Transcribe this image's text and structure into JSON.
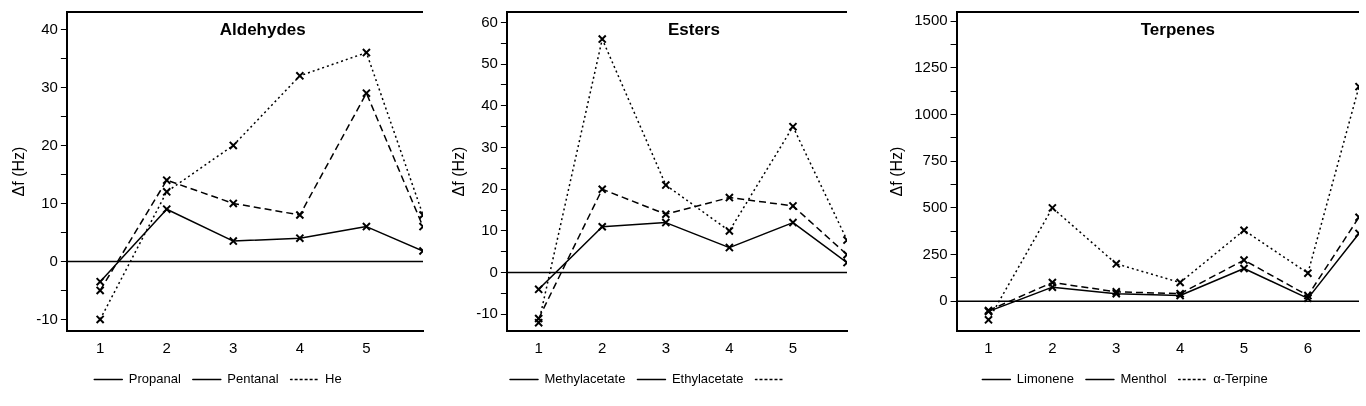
{
  "chart_data": [
    {
      "type": "line",
      "title": "Aldehydes",
      "ylabel": "Δf (Hz)",
      "x": [
        1,
        2,
        3,
        4,
        5,
        5.85
      ],
      "xlim": [
        0.5,
        5.85
      ],
      "xticks": [
        1,
        2,
        3,
        4,
        5
      ],
      "ylim": [
        -12,
        43
      ],
      "yticks": [
        {
          "value": -10,
          "label": "-10"
        },
        {
          "value": -5,
          "label": null
        },
        0,
        {
          "value": 5,
          "label": null
        },
        10,
        {
          "value": 15,
          "label": null
        },
        20,
        {
          "value": 25,
          "label": null
        },
        30,
        {
          "value": 35,
          "label": null
        },
        40
      ],
      "grid": false,
      "legend": "bottom",
      "ref_lines": [
        {
          "axis": "y",
          "value": 0,
          "color": "#000000"
        }
      ],
      "series": [
        {
          "name": "Propanal",
          "color": "#000000",
          "line_style": "solid",
          "marker": "cross",
          "values": [
            -3.5,
            9,
            3.5,
            4,
            6,
            1.8
          ]
        },
        {
          "name": "Pentanal",
          "color": "#000000",
          "line_style": "dashed",
          "marker": "cross",
          "values": [
            -5,
            14,
            10,
            8,
            29,
            6
          ]
        },
        {
          "name": "He",
          "color": "#000000",
          "line_style": "dotted",
          "marker": "cross",
          "values": [
            -10,
            12,
            20,
            32,
            36,
            8
          ]
        }
      ]
    },
    {
      "type": "line",
      "title": "Esters",
      "ylabel": "Δf (Hz)",
      "x": [
        1,
        2,
        3,
        4,
        5,
        5.85
      ],
      "xlim": [
        0.5,
        5.85
      ],
      "xticks": [
        1,
        2,
        3,
        4,
        5
      ],
      "ylim": [
        -14,
        62.5
      ],
      "yticks": [
        {
          "value": -10,
          "label": "-10"
        },
        {
          "value": -5,
          "label": null
        },
        0,
        {
          "value": 5,
          "label": null
        },
        10,
        {
          "value": 15,
          "label": null
        },
        20,
        {
          "value": 25,
          "label": null
        },
        30,
        {
          "value": 35,
          "label": null
        },
        40,
        {
          "value": 45,
          "label": null
        },
        50,
        {
          "value": 55,
          "label": null
        },
        60
      ],
      "grid": false,
      "legend": "bottom",
      "ref_lines": [
        {
          "axis": "y",
          "value": 0,
          "color": "#000000"
        }
      ],
      "series": [
        {
          "name": "Methylacetate",
          "color": "#000000",
          "line_style": "solid",
          "marker": "cross",
          "values": [
            -4,
            11,
            12,
            6,
            12,
            2.4
          ]
        },
        {
          "name": "Ethylacetate",
          "color": "#000000",
          "line_style": "dashed",
          "marker": "cross",
          "values": [
            -11,
            20,
            14,
            18,
            16,
            4.3
          ]
        },
        {
          "color": "#000000",
          "line_style": "dotted",
          "marker": "cross",
          "values": [
            -12,
            56,
            21,
            10,
            35,
            7.8
          ]
        }
      ]
    },
    {
      "type": "line",
      "title": "Terpenes",
      "ylabel": "Δf (Hz)",
      "x": [
        1,
        2,
        3,
        4,
        5,
        6,
        6.8
      ],
      "xlim": [
        0.5,
        6.8
      ],
      "xticks": [
        1,
        2,
        3,
        4,
        5,
        6
      ],
      "ylim": [
        -160,
        1550
      ],
      "yticks": [
        0,
        {
          "value": 125,
          "label": null
        },
        250,
        {
          "value": 375,
          "label": null
        },
        500,
        {
          "value": 625,
          "label": null
        },
        750,
        {
          "value": 875,
          "label": null
        },
        1000,
        {
          "value": 1125,
          "label": null
        },
        1250,
        {
          "value": 1375,
          "label": null
        },
        1500
      ],
      "grid": false,
      "legend": "bottom",
      "ref_lines": [
        {
          "axis": "y",
          "value": 0,
          "color": "#000000"
        }
      ],
      "series": [
        {
          "name": "Limonene",
          "color": "#000000",
          "line_style": "solid",
          "marker": "cross",
          "values": [
            -55,
            75,
            40,
            30,
            175,
            15,
            363
          ]
        },
        {
          "name": "Menthol",
          "color": "#000000",
          "line_style": "dashed",
          "marker": "cross",
          "values": [
            -50,
            100,
            50,
            40,
            220,
            30,
            450
          ]
        },
        {
          "name": "α-Terpine",
          "color": "#000000",
          "line_style": "dotted",
          "marker": "cross",
          "values": [
            -100,
            500,
            200,
            100,
            380,
            150,
            1150
          ]
        }
      ]
    }
  ]
}
